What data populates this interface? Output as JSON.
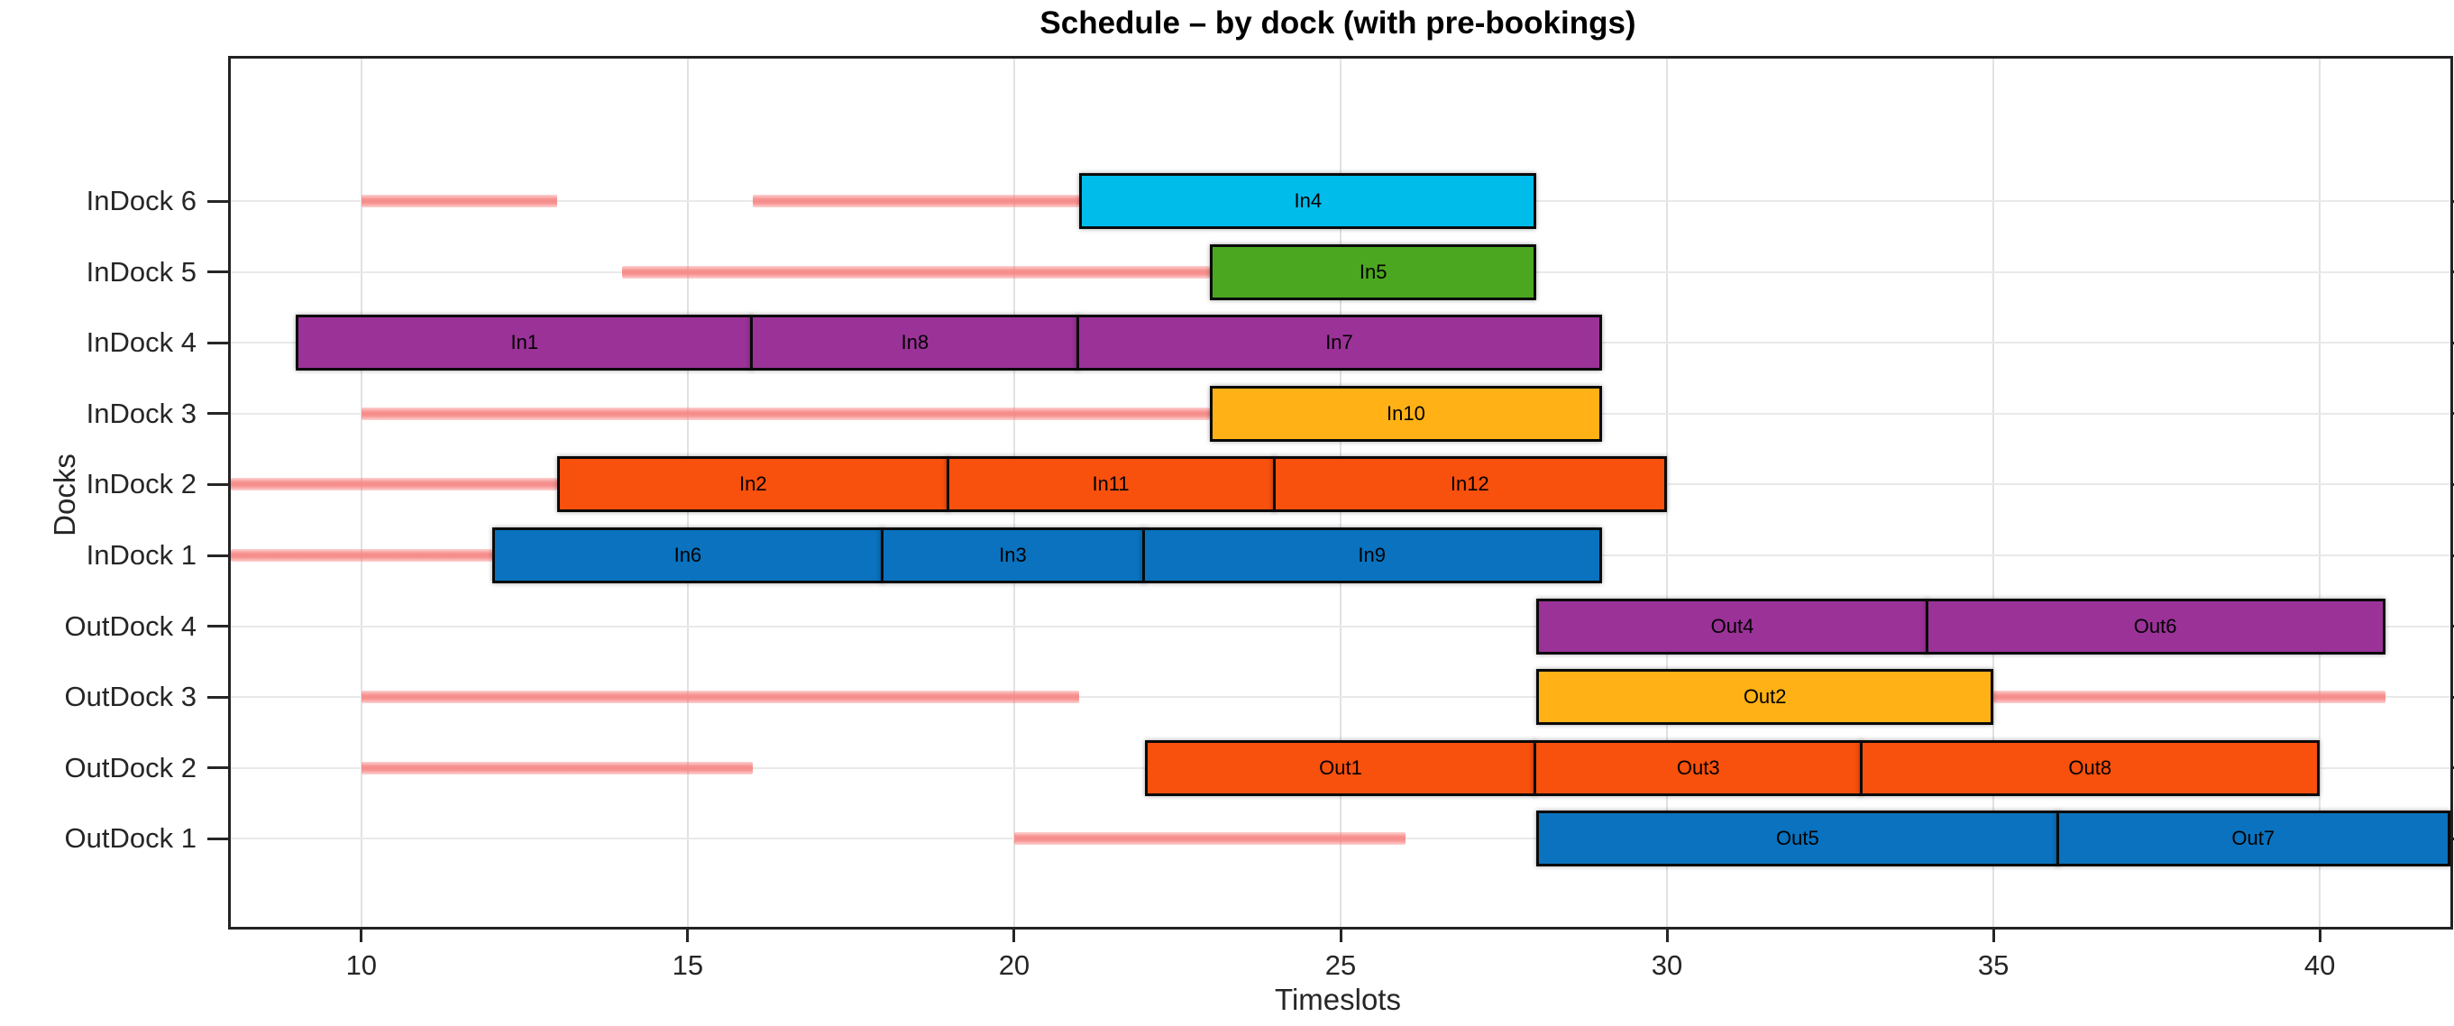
{
  "chart_data": {
    "type": "bar",
    "subtype": "gantt-schedule",
    "title": "Schedule – by dock (with pre-bookings)",
    "xlabel": "Timeslots",
    "ylabel": "Docks",
    "xlim": [
      8,
      42
    ],
    "xticks": [
      10,
      15,
      20,
      25,
      30,
      35,
      40
    ],
    "grid": true,
    "legend": "none",
    "prebooking_color": "#F67E7C",
    "palette": {
      "cyan": "#00BCEB",
      "green": "#4CA720",
      "purple": "#9B3298",
      "yellow": "#FFB115",
      "orange": "#F8500D",
      "blue": "#0A72BE"
    },
    "rows": [
      {
        "dock": "InDock 6",
        "prebookings": [
          [
            10,
            13
          ],
          [
            16,
            21
          ]
        ],
        "tasks": [
          {
            "label": "In4",
            "start": 21,
            "end": 28,
            "color": "#00BCEB"
          }
        ]
      },
      {
        "dock": "InDock 5",
        "prebookings": [
          [
            14,
            23
          ]
        ],
        "tasks": [
          {
            "label": "In5",
            "start": 23,
            "end": 28,
            "color": "#4CA720"
          }
        ]
      },
      {
        "dock": "InDock 4",
        "prebookings": [],
        "tasks": [
          {
            "label": "In1",
            "start": 9,
            "end": 16,
            "color": "#9B3298"
          },
          {
            "label": "In8",
            "start": 16,
            "end": 21,
            "color": "#9B3298"
          },
          {
            "label": "In7",
            "start": 21,
            "end": 29,
            "color": "#9B3298"
          }
        ]
      },
      {
        "dock": "InDock 3",
        "prebookings": [
          [
            10,
            23
          ]
        ],
        "tasks": [
          {
            "label": "In10",
            "start": 23,
            "end": 29,
            "color": "#FFB115"
          }
        ]
      },
      {
        "dock": "InDock 2",
        "prebookings": [
          [
            8,
            13
          ]
        ],
        "tasks": [
          {
            "label": "In2",
            "start": 13,
            "end": 19,
            "color": "#F8500D"
          },
          {
            "label": "In11",
            "start": 19,
            "end": 24,
            "color": "#F8500D"
          },
          {
            "label": "In12",
            "start": 24,
            "end": 30,
            "color": "#F8500D"
          }
        ]
      },
      {
        "dock": "InDock 1",
        "prebookings": [
          [
            8,
            12
          ]
        ],
        "tasks": [
          {
            "label": "In6",
            "start": 12,
            "end": 18,
            "color": "#0A72BE"
          },
          {
            "label": "In3",
            "start": 18,
            "end": 22,
            "color": "#0A72BE"
          },
          {
            "label": "In9",
            "start": 22,
            "end": 29,
            "color": "#0A72BE"
          }
        ]
      },
      {
        "dock": "OutDock 4",
        "prebookings": [],
        "tasks": [
          {
            "label": "Out4",
            "start": 28,
            "end": 34,
            "color": "#9B3298"
          },
          {
            "label": "Out6",
            "start": 34,
            "end": 41,
            "color": "#9B3298"
          }
        ]
      },
      {
        "dock": "OutDock 3",
        "prebookings": [
          [
            10,
            21
          ],
          [
            35,
            41
          ]
        ],
        "tasks": [
          {
            "label": "Out2",
            "start": 28,
            "end": 35,
            "color": "#FFB115"
          }
        ]
      },
      {
        "dock": "OutDock 2",
        "prebookings": [
          [
            10,
            16
          ]
        ],
        "tasks": [
          {
            "label": "Out1",
            "start": 22,
            "end": 28,
            "color": "#F8500D"
          },
          {
            "label": "Out3",
            "start": 28,
            "end": 33,
            "color": "#F8500D"
          },
          {
            "label": "Out8",
            "start": 33,
            "end": 40,
            "color": "#F8500D"
          }
        ]
      },
      {
        "dock": "OutDock 1",
        "prebookings": [
          [
            20,
            26
          ]
        ],
        "tasks": [
          {
            "label": "Out5",
            "start": 28,
            "end": 36,
            "color": "#0A72BE"
          },
          {
            "label": "Out7",
            "start": 36,
            "end": 42,
            "color": "#0A72BE"
          }
        ]
      }
    ]
  }
}
